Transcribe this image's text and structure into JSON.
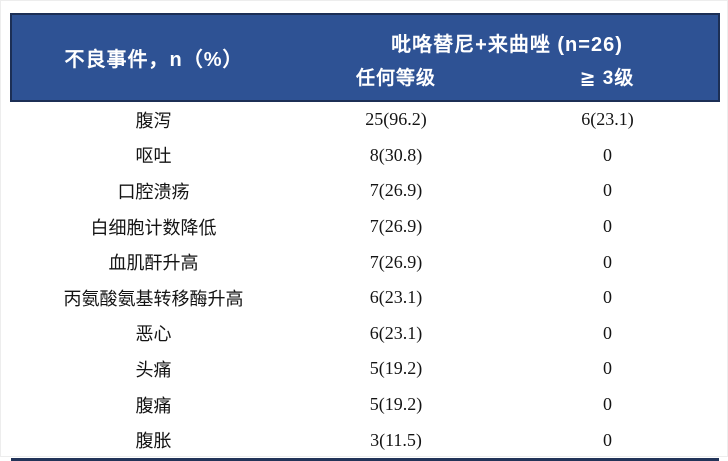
{
  "header": {
    "event_column": "不良事件，n（%）",
    "treatment_group": "吡咯替尼+来曲唑 (n=26)",
    "sub_any_grade": "任何等级",
    "sub_grade3_plus": "≧ 3级"
  },
  "colors": {
    "header_bg": "#2e5294",
    "header_border": "#1c2f55",
    "header_text": "#ffffff",
    "body_text": "#141414",
    "bottom_rule": "#223459"
  },
  "chart_data": {
    "type": "table",
    "title": "吡咯替尼+来曲唑 (n=26) 不良事件表",
    "column_group": {
      "label": "吡咯替尼+来曲唑 (n=26)",
      "spans": [
        "任何等级",
        "≧ 3级"
      ]
    },
    "columns": [
      "不良事件，n（%）",
      "任何等级",
      "≧ 3级"
    ],
    "rows": [
      [
        "腹泻",
        "25(96.2)",
        "6(23.1)"
      ],
      [
        "呕吐",
        "8(30.8)",
        "0"
      ],
      [
        "口腔溃疡",
        "7(26.9)",
        "0"
      ],
      [
        "白细胞计数降低",
        "7(26.9)",
        "0"
      ],
      [
        "血肌酐升高",
        "7(26.9)",
        "0"
      ],
      [
        "丙氨酸氨基转移酶升高",
        "6(23.1)",
        "0"
      ],
      [
        "恶心",
        "6(23.1)",
        "0"
      ],
      [
        "头痛",
        "5(19.2)",
        "0"
      ],
      [
        "腹痛",
        "5(19.2)",
        "0"
      ],
      [
        "腹胀",
        "3(11.5)",
        "0"
      ]
    ]
  }
}
